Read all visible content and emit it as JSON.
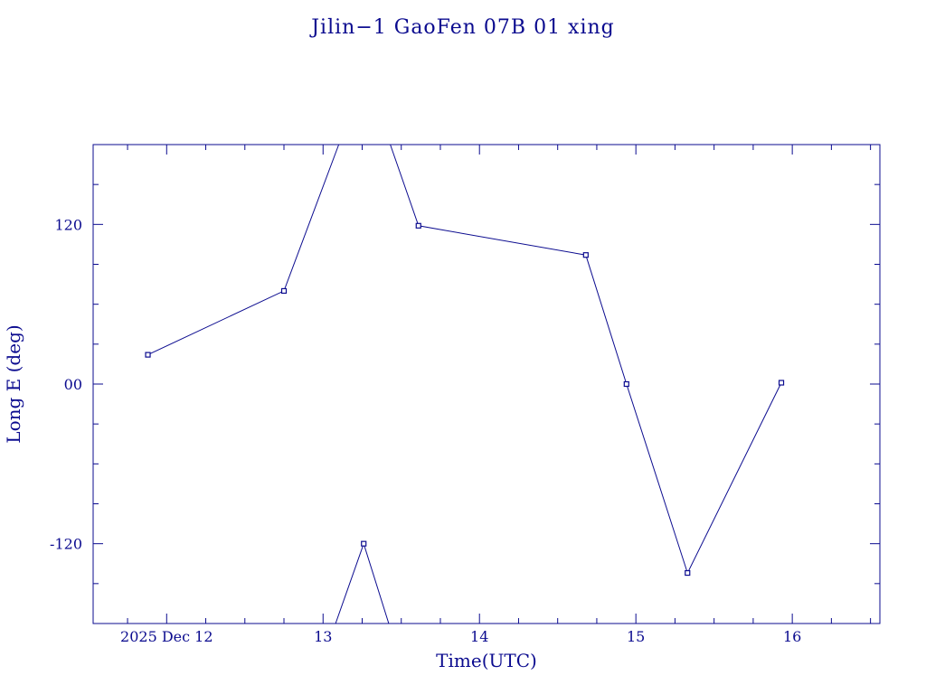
{
  "chart_data": {
    "type": "line",
    "title": "Jilin−1 GaoFen 07B 01 xing",
    "xlabel": "Time(UTC)",
    "ylabel": "Long E (deg)",
    "color": "#0b0b8f",
    "xlim": [
      11.53,
      16.56
    ],
    "ylim": [
      -180,
      180
    ],
    "x_ticks": [
      {
        "value": 12,
        "label": "2025 Dec 12"
      },
      {
        "value": 13,
        "label": "13"
      },
      {
        "value": 14,
        "label": "14"
      },
      {
        "value": 15,
        "label": "15"
      },
      {
        "value": 16,
        "label": "16"
      }
    ],
    "y_ticks": [
      {
        "value": 120,
        "label": "120"
      },
      {
        "value": 0,
        "label": "00"
      },
      {
        "value": -120,
        "label": "-120"
      }
    ],
    "segments": [
      [
        [
          11.88,
          22
        ],
        [
          12.75,
          70
        ],
        [
          13.1,
          180
        ]
      ],
      [
        [
          13.43,
          180
        ],
        [
          13.61,
          119
        ],
        [
          14.68,
          97
        ],
        [
          14.94,
          0
        ],
        [
          15.33,
          -142
        ],
        [
          15.93,
          1
        ]
      ],
      [
        [
          13.08,
          -180
        ],
        [
          13.26,
          -120
        ],
        [
          13.42,
          -180
        ]
      ]
    ],
    "points": [
      [
        11.88,
        22
      ],
      [
        12.75,
        70
      ],
      [
        13.26,
        -120
      ],
      [
        13.61,
        119
      ],
      [
        14.68,
        97
      ],
      [
        14.94,
        0
      ],
      [
        15.33,
        -142
      ],
      [
        15.93,
        1
      ]
    ],
    "grid": false,
    "legend": "none"
  }
}
